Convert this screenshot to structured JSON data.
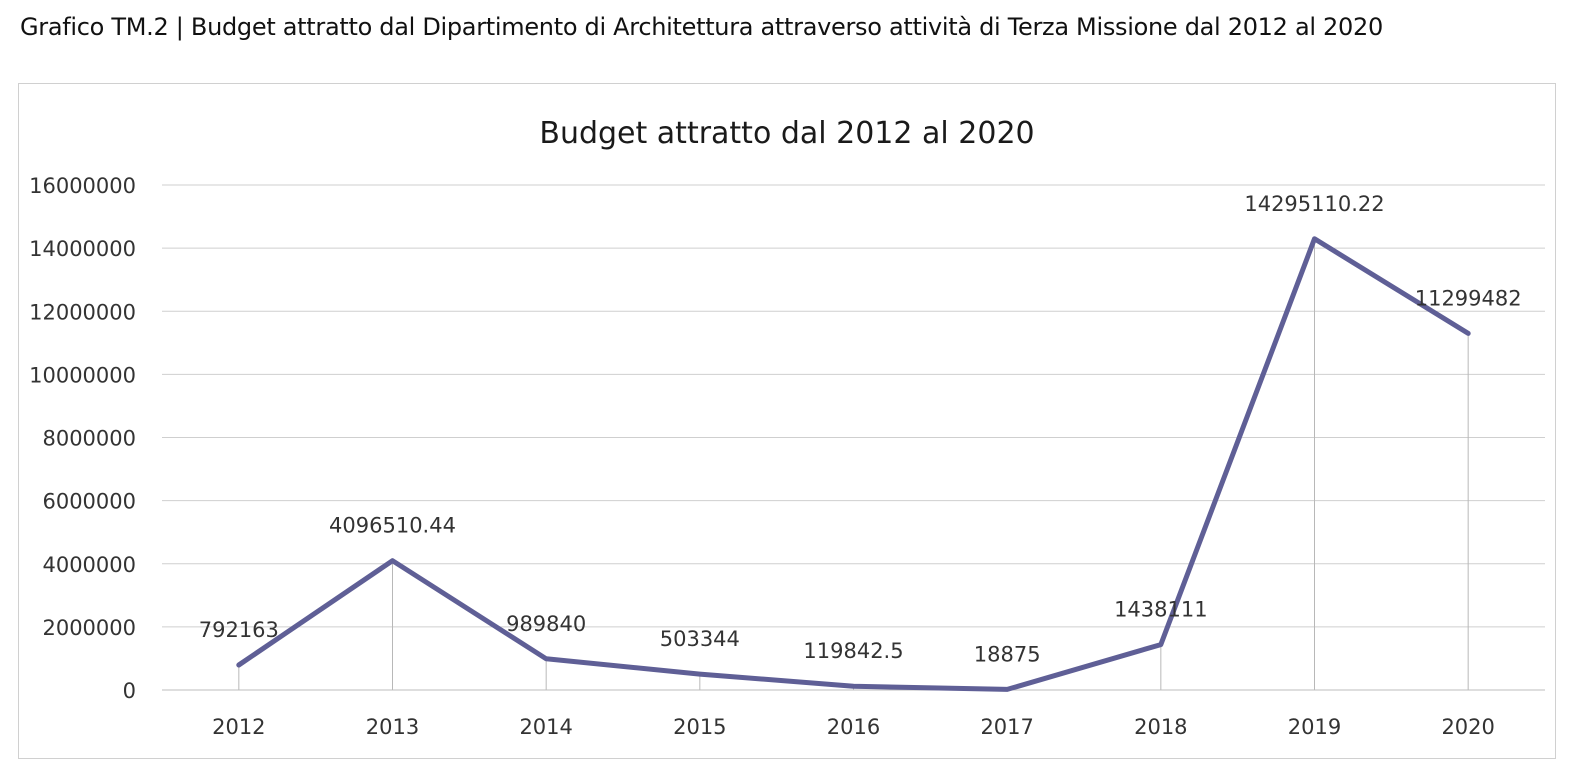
{
  "caption": "Grafico TM.2 | Budget attratto dal Dipartimento di Architettura attraverso attività di Terza Missione dal 2012 al 2020",
  "chart_data": {
    "type": "line",
    "title": "Budget attratto dal 2012 al 2020",
    "xlabel": "",
    "ylabel": "",
    "categories": [
      "2012",
      "2013",
      "2014",
      "2015",
      "2016",
      "2017",
      "2018",
      "2019",
      "2020"
    ],
    "series": [
      {
        "values": [
          792163,
          4096510.44,
          989840,
          503344,
          119842.5,
          18875,
          1438111,
          14295110.22,
          11299482
        ],
        "data_labels": [
          "792163",
          "4096510.44",
          "989840",
          "503344",
          "119842.5",
          "18875",
          "1438111",
          "14295110.22",
          "11299482"
        ],
        "color": "#5f5f96"
      }
    ],
    "ylim": [
      0,
      16000000
    ],
    "yticks": [
      0,
      2000000,
      4000000,
      6000000,
      8000000,
      10000000,
      12000000,
      14000000,
      16000000
    ],
    "ytick_labels": [
      "0",
      "2000000",
      "4000000",
      "6000000",
      "8000000",
      "10000000",
      "12000000",
      "14000000",
      "16000000"
    ],
    "grid": true,
    "drop_lines": true,
    "legend": "none"
  }
}
